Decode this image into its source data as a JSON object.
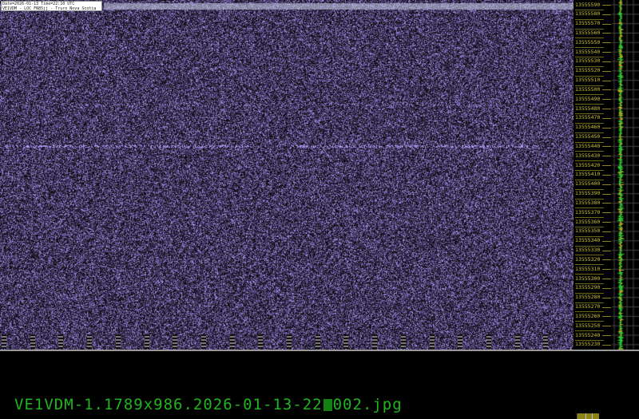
{
  "header": {
    "line1": "Date=2026-01-13 Time=22:10 UTC",
    "line2": "VE1VDM - LOC FN85jj - Truro Nova Scotia"
  },
  "frequency_axis": {
    "labels": [
      "13555590",
      "13555580",
      "13555570",
      "13555560",
      "13555550",
      "13555540",
      "13555530",
      "13555520",
      "13555510",
      "13555500",
      "13555490",
      "13555480",
      "13555470",
      "13555460",
      "13555450",
      "13555440",
      "13555430",
      "13555420",
      "13555410",
      "13555400",
      "13555390",
      "13555380",
      "13555370",
      "13555360",
      "13555350",
      "13555340",
      "13555330",
      "13555320",
      "13555310",
      "13555300",
      "13555290",
      "13555280",
      "13555270",
      "13555260",
      "13555250",
      "13555240",
      "13555230"
    ]
  },
  "filename": {
    "prefix": "VE1VDM-1.1789x986.2026-01-13-22",
    "suffix": "002.jpg"
  },
  "colors": {
    "waterfall_noise": "#3a3aa0",
    "label": "#c8c030",
    "filename": "#1fb51f",
    "spectrum": "#2ec02e"
  }
}
